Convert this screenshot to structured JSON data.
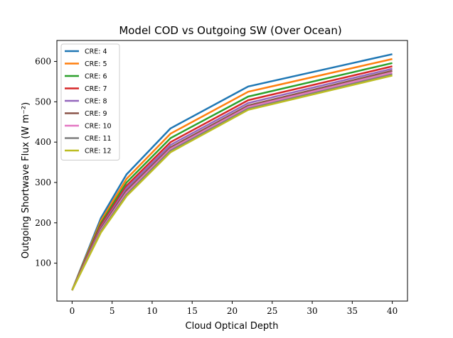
{
  "chart_data": {
    "type": "line",
    "title": "Model COD vs Outgoing SW (Over Ocean)",
    "xlabel": "Cloud Optical Depth",
    "ylabel": "Outgoing Shortwave Flux (W m⁻²)",
    "xlim": [
      -1.9,
      41.9
    ],
    "ylim": [
      6,
      652
    ],
    "xticks": [
      0,
      5,
      10,
      15,
      20,
      25,
      30,
      35,
      40
    ],
    "yticks": [
      100,
      200,
      300,
      400,
      500,
      600
    ],
    "grid": false,
    "legend_position": "upper-left",
    "x": [
      0,
      3.6,
      6.8,
      12.3,
      22.0,
      40.0
    ],
    "series": [
      {
        "name": "CRE: 4",
        "color": "#1f77b4",
        "values": [
          33,
          212,
          320,
          434,
          538,
          618
        ]
      },
      {
        "name": "CRE: 5",
        "color": "#ff7f0e",
        "values": [
          33,
          205,
          309,
          421,
          525,
          606
        ]
      },
      {
        "name": "CRE: 6",
        "color": "#2ca02c",
        "values": [
          33,
          199,
          300,
          410,
          513,
          596
        ]
      },
      {
        "name": "CRE: 7",
        "color": "#d62728",
        "values": [
          33,
          194,
          292,
          400,
          504,
          588
        ]
      },
      {
        "name": "CRE: 8",
        "color": "#9467bd",
        "values": [
          33,
          189,
          286,
          393,
          497,
          582
        ]
      },
      {
        "name": "CRE: 9",
        "color": "#8c564b",
        "values": [
          33,
          186,
          280,
          387,
          491,
          577
        ]
      },
      {
        "name": "CRE: 10",
        "color": "#e377c2",
        "values": [
          33,
          182,
          275,
          383,
          487,
          572
        ]
      },
      {
        "name": "CRE: 11",
        "color": "#7f7f7f",
        "values": [
          33,
          179,
          270,
          379,
          483,
          568
        ]
      },
      {
        "name": "CRE: 12",
        "color": "#bcbd22",
        "values": [
          33,
          176,
          266,
          375,
          480,
          565
        ]
      }
    ]
  }
}
